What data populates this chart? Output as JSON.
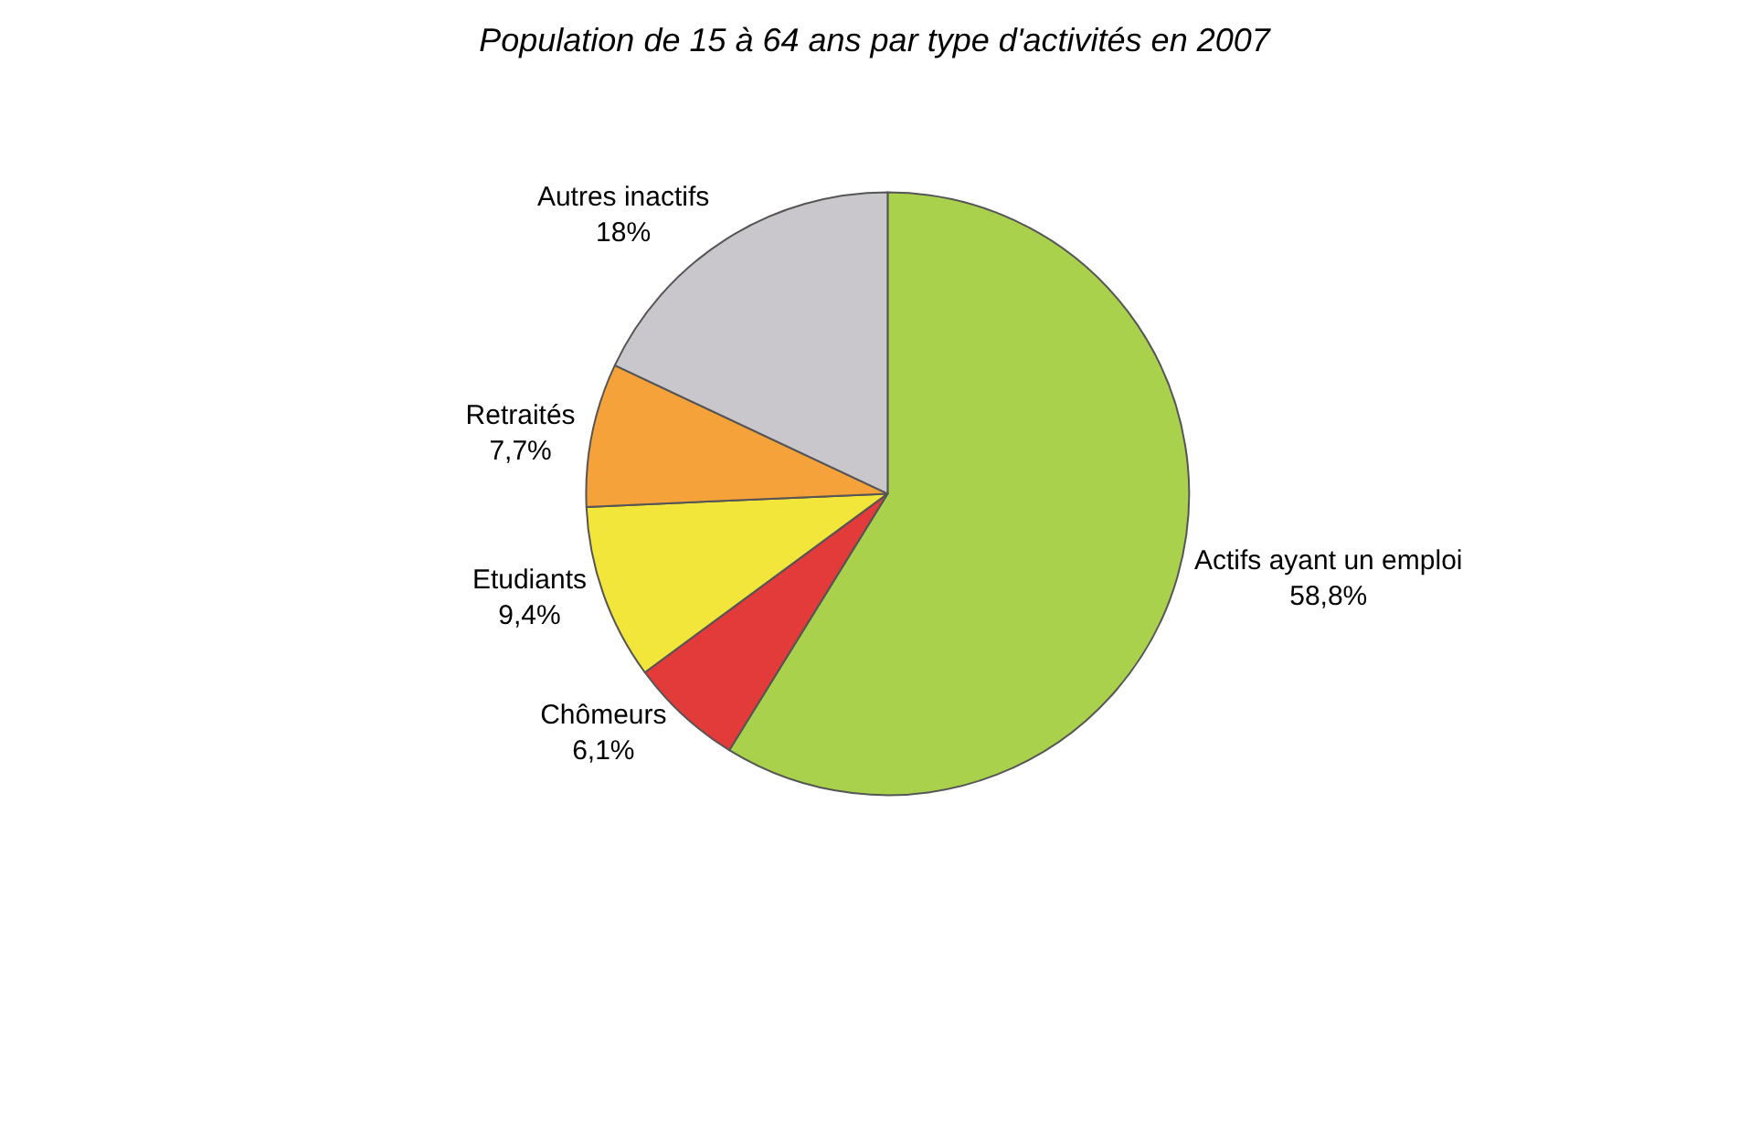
{
  "chart_data": {
    "type": "pie",
    "title": "Population de 15 à 64 ans par type d'activités en 2007",
    "categories": [
      "Actifs ayant un emploi",
      "Chômeurs",
      "Etudiants",
      "Retraités",
      "Autres inactifs"
    ],
    "values": [
      58.8,
      6.1,
      9.4,
      7.7,
      18
    ],
    "value_labels": [
      "58,8%",
      "6,1%",
      "9,4%",
      "7,7%",
      "18%"
    ],
    "colors": [
      "#a9d14c",
      "#e33a3a",
      "#f3e63a",
      "#f5a23a",
      "#c9c6cc"
    ],
    "legend": false
  }
}
